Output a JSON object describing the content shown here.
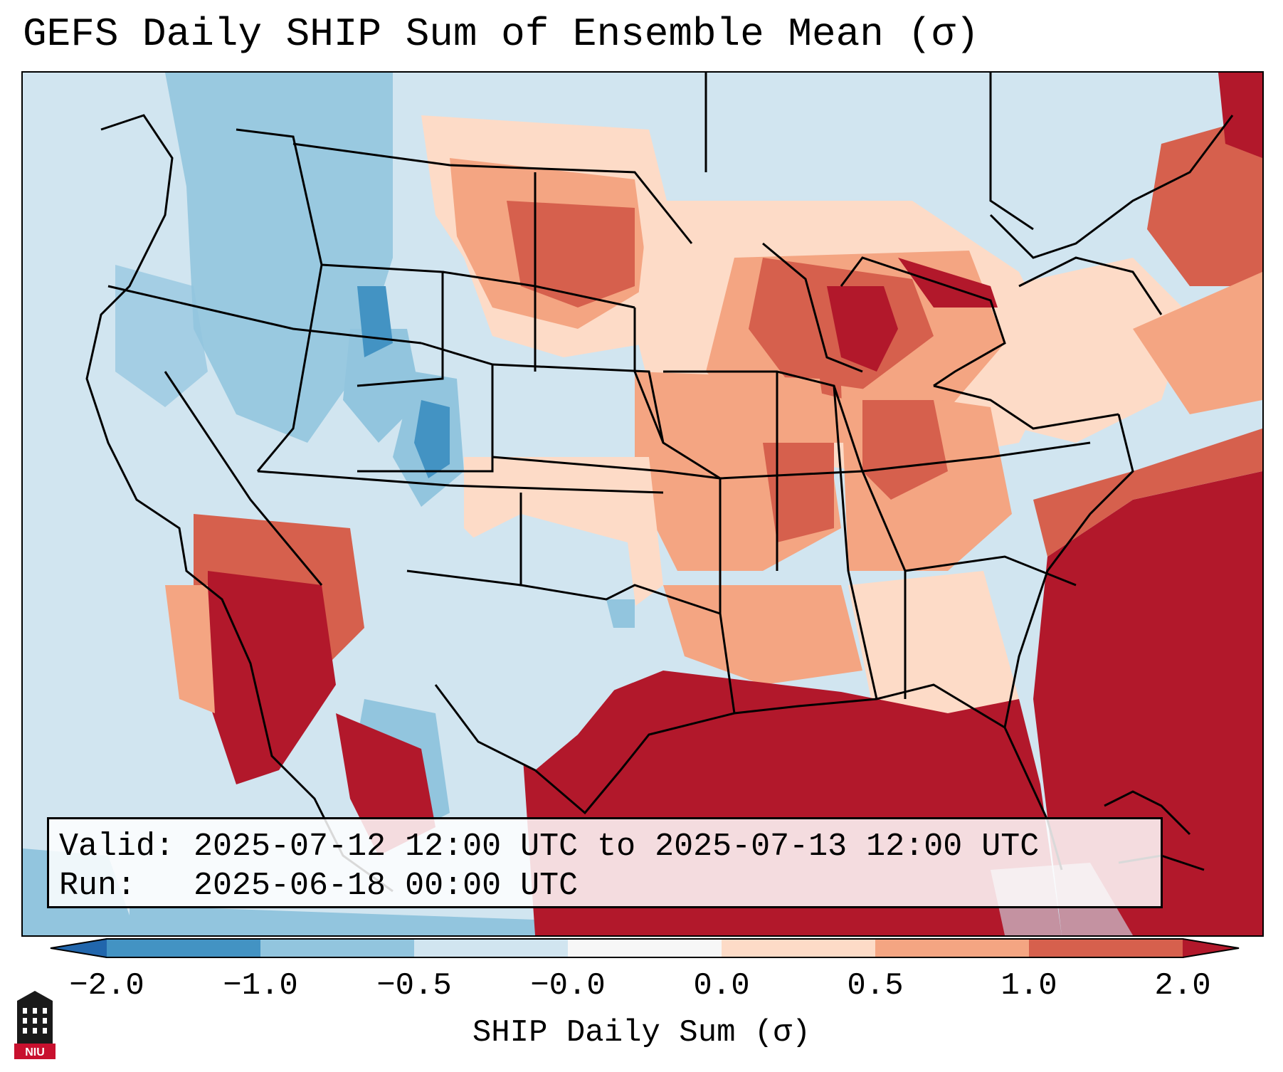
{
  "title": "GEFS Daily SHIP Sum of Ensemble Mean (σ)",
  "info": {
    "valid_line": "Valid: 2025-07-12 12:00 UTC to 2025-07-13 12:00 UTC",
    "run_line": "Run:   2025-06-18 00:00 UTC"
  },
  "colorbar": {
    "label": "SHIP Daily Sum (σ)",
    "ticks": [
      "−2.0",
      "−1.0",
      "−0.5",
      "−0.0",
      "0.0",
      "0.5",
      "1.0",
      "2.0"
    ],
    "bins": [
      {
        "color": "#2166ac"
      },
      {
        "color": "#4393c3"
      },
      {
        "color": "#92c5de"
      },
      {
        "color": "#d1e5f0"
      },
      {
        "color": "#f7f7f7"
      },
      {
        "color": "#fddbc7"
      },
      {
        "color": "#f4a582"
      },
      {
        "color": "#d6604d"
      },
      {
        "color": "#b2182b"
      }
    ]
  },
  "logo": {
    "text": "NIU"
  }
}
